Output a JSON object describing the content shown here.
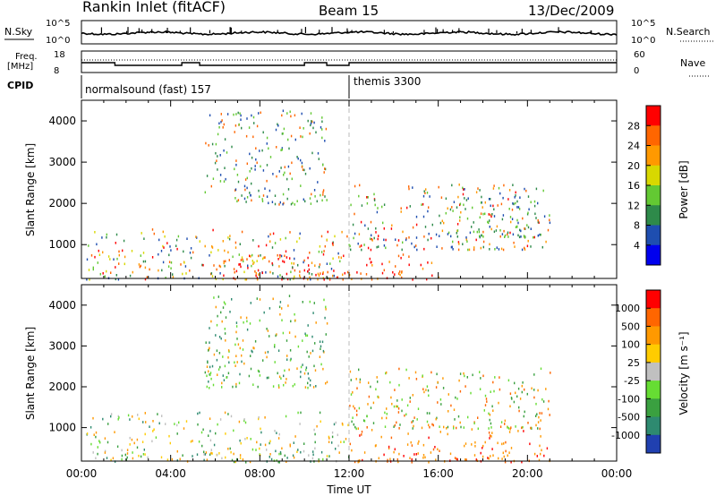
{
  "header": {
    "station": "Rankin Inlet (fitACF)",
    "beam": "Beam 15",
    "date": "13/Dec/2009"
  },
  "top_panels": {
    "nsky_label": "N.Sky",
    "nsky_ticks": [
      "10^5",
      "10^0"
    ],
    "nsearch_label": "N.Search",
    "nsearch_ticks": [
      "10^5",
      "10^0"
    ],
    "freq_label": "Freq.",
    "freq_unit": "[MHz]",
    "freq_ticks": [
      "18",
      "8"
    ],
    "nave_label": "Nave",
    "nave_ticks": [
      "60",
      "0"
    ],
    "cpid_label": "CPID",
    "cpid_modes": [
      {
        "name": "normalsound (fast) 157",
        "start_hour": 0
      },
      {
        "name": "themis 3300",
        "start_hour": 12
      }
    ]
  },
  "chart_data": [
    {
      "type": "heatmap",
      "name": "power",
      "ylabel": "Slant Range [km]",
      "xlabel": "",
      "y_ticks": [
        1000,
        2000,
        3000,
        4000
      ],
      "ylim": [
        180,
        4500
      ],
      "x_ticks": [
        "00:00",
        "04:00",
        "08:00",
        "12:00",
        "16:00",
        "20:00",
        "00:00"
      ],
      "xlim_hours": [
        0,
        24
      ],
      "colorbar_label": "Power [dB]",
      "colorbar_ticks": [
        "28",
        "24",
        "20",
        "16",
        "12",
        "8",
        "4"
      ],
      "colorbar_colors": [
        "#0000ee",
        "#1e4eb0",
        "#2e8a4a",
        "#63c933",
        "#d8d800",
        "#ff9900",
        "#ff6600",
        "#ff0000"
      ],
      "scatter_regions": [
        {
          "hour_start": 0.2,
          "hour_end": 12.0,
          "range_start": 180,
          "range_end": 1400,
          "level": "mixed-strong"
        },
        {
          "hour_start": 6.0,
          "hour_end": 16.0,
          "range_start": 180,
          "range_end": 800,
          "level": "strong"
        },
        {
          "hour_start": 12.0,
          "hour_end": 21.0,
          "range_start": 900,
          "range_end": 2500,
          "level": "mixed"
        },
        {
          "hour_start": 16.5,
          "hour_end": 20.5,
          "range_start": 1200,
          "range_end": 2200,
          "level": "weak"
        }
      ]
    },
    {
      "type": "heatmap",
      "name": "velocity",
      "ylabel": "Slant Range [km]",
      "xlabel": "Time UT",
      "y_ticks": [
        1000,
        2000,
        3000,
        4000
      ],
      "ylim": [
        180,
        4500
      ],
      "x_ticks": [
        "00:00",
        "04:00",
        "08:00",
        "12:00",
        "16:00",
        "20:00",
        "00:00"
      ],
      "xlim_hours": [
        0,
        24
      ],
      "colorbar_label": "Velocity [m s⁻¹]",
      "colorbar_ticks": [
        "1000",
        "500",
        "100",
        "25",
        "-25",
        "-100",
        "-500",
        "-1000"
      ],
      "colorbar_colors": [
        "#2040b0",
        "#2e8a70",
        "#3aa040",
        "#66dd33",
        "#c0c0c0",
        "#ffcc00",
        "#ff9900",
        "#ff6600",
        "#ff0000"
      ],
      "scatter_regions": [
        {
          "hour_start": 0.2,
          "hour_end": 12.0,
          "range_start": 180,
          "range_end": 1400,
          "level": "positive"
        },
        {
          "hour_start": 12.0,
          "hour_end": 21.0,
          "range_start": 180,
          "range_end": 2500,
          "level": "negative"
        }
      ]
    }
  ]
}
